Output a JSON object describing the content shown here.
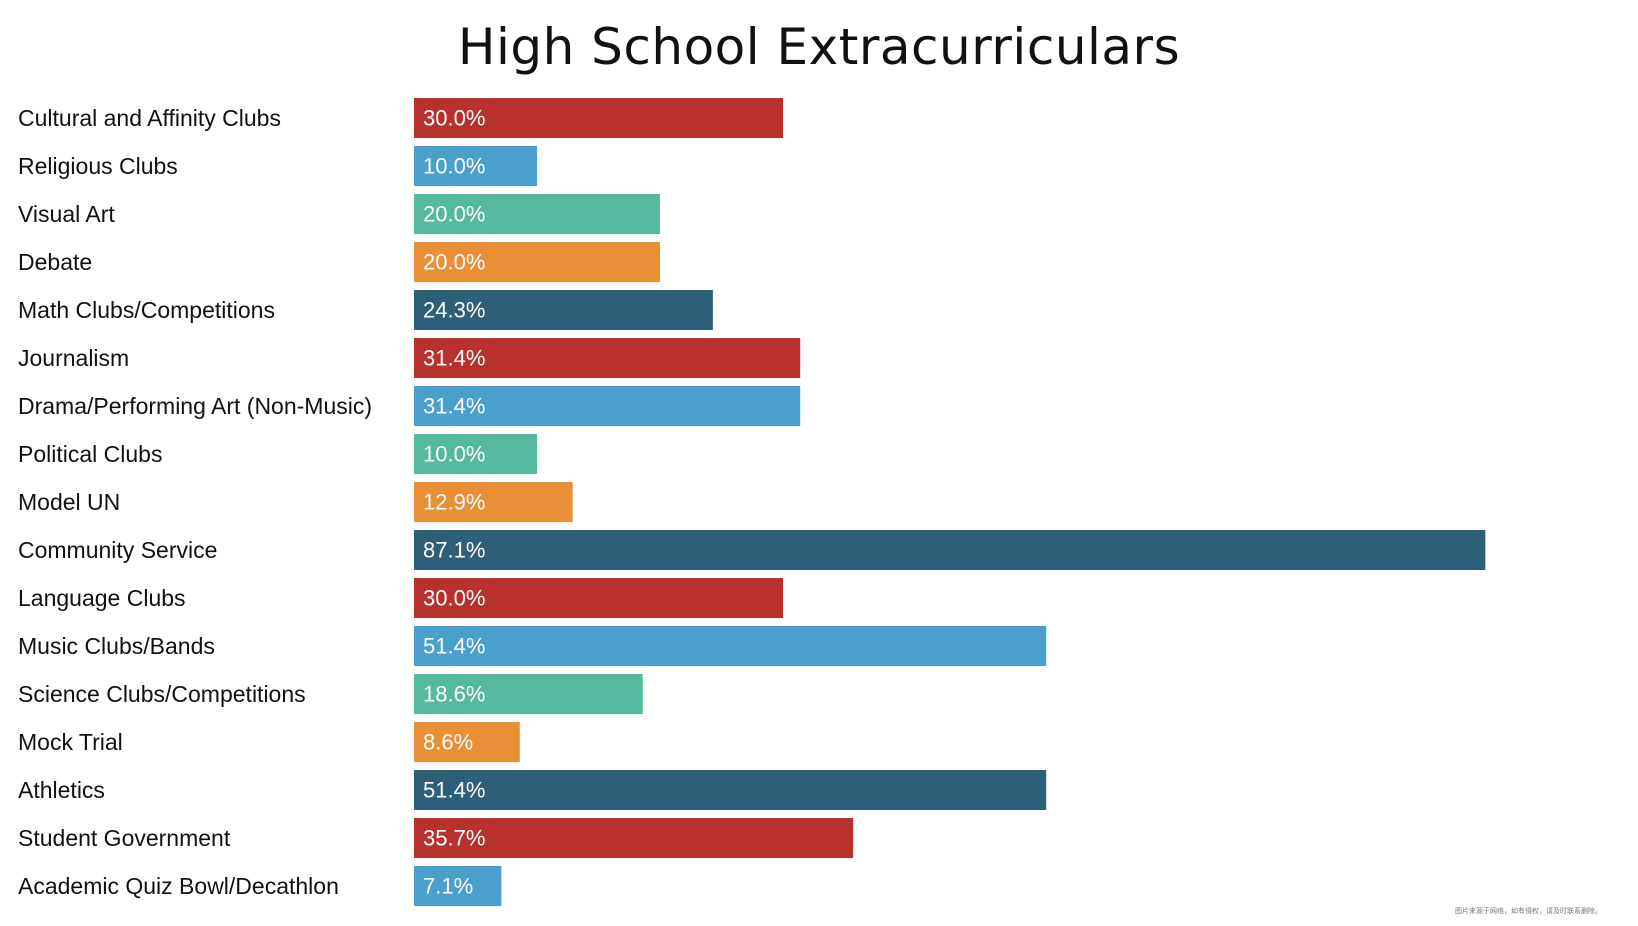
{
  "chart_data": {
    "type": "bar",
    "orientation": "horizontal",
    "title": "High School Extracurriculars",
    "xlabel": "",
    "ylabel": "",
    "xlim": [
      0,
      100
    ],
    "grid": false,
    "legend": "none",
    "categories": [
      "Cultural and Affinity Clubs",
      "Religious Clubs",
      "Visual Art",
      "Debate",
      "Math Clubs/Competitions",
      "Journalism",
      "Drama/Performing Art (Non-Music)",
      "Political Clubs",
      "Model UN",
      "Community Service",
      "Language Clubs",
      "Music Clubs/Bands",
      "Science Clubs/Competitions",
      "Mock Trial",
      "Athletics",
      "Student Government",
      "Academic Quiz Bowl/Decathlon"
    ],
    "values": [
      30.0,
      10.0,
      20.0,
      20.0,
      24.3,
      31.4,
      31.4,
      10.0,
      12.9,
      87.1,
      30.0,
      51.4,
      18.6,
      8.6,
      51.4,
      35.7,
      7.1
    ],
    "value_labels": [
      "30.0%",
      "10.0%",
      "20.0%",
      "20.0%",
      "24.3%",
      "31.4%",
      "31.4%",
      "10.0%",
      "12.9%",
      "87.1%",
      "30.0%",
      "51.4%",
      "18.6%",
      "8.6%",
      "51.4%",
      "35.7%",
      "7.1%"
    ],
    "colors": [
      "#b8312c",
      "#4a9fcd",
      "#55b9a0",
      "#e98f36",
      "#2d5f78"
    ]
  },
  "footnote": "图片来源于网络，如有侵权，请及时联系删除。"
}
